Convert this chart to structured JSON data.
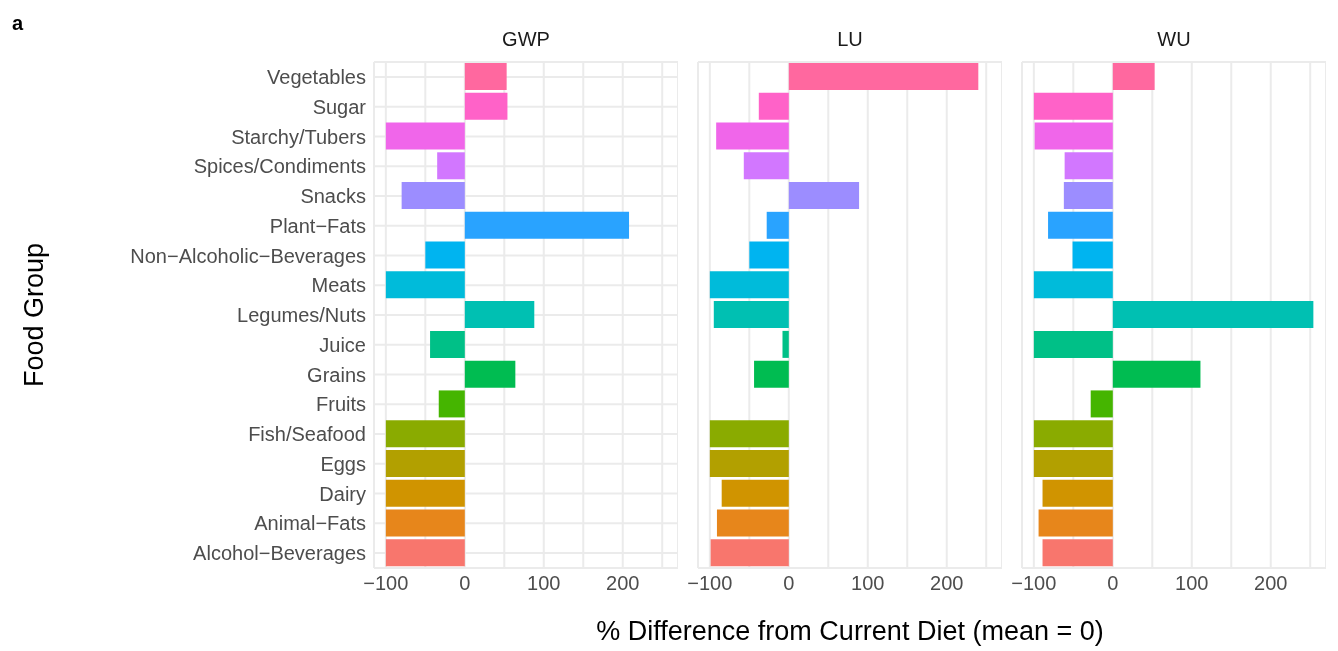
{
  "chart_data": [
    {
      "type": "bar",
      "orientation": "horizontal",
      "title": "GWP",
      "ylabel": "Food Group",
      "annotations": [
        "a"
      ],
      "grid": true,
      "categories": [
        "Vegetables",
        "Sugar",
        "Starchy/Tubers",
        "Spices/Condiments",
        "Snacks",
        "Plant−Fats",
        "Non−Alcoholic−Beverages",
        "Meats",
        "Legumes/Nuts",
        "Juice",
        "Grains",
        "Fruits",
        "Fish/Seafood",
        "Eggs",
        "Dairy",
        "Animal−Fats",
        "Alcohol−Beverages"
      ],
      "values": [
        53,
        54,
        -100,
        -35,
        -80,
        208,
        -50,
        -100,
        88,
        -44,
        64,
        -33,
        -100,
        -100,
        -100,
        -100,
        -100
      ],
      "colors": [
        "#ff689f",
        "#ff62c8",
        "#f066ea",
        "#d277ff",
        "#9c8dff",
        "#29a3ff",
        "#00b4f0",
        "#00bbda",
        "#00c0b2",
        "#00c087",
        "#00bc51",
        "#45b500",
        "#8aab00",
        "#b2a000",
        "#d09400",
        "#e7861b",
        "#f8766d"
      ],
      "xlim": [
        -115,
        270
      ],
      "xticks": [
        -100,
        {
          "value": -50,
          "label": null
        },
        0,
        {
          "value": 50,
          "label": null
        },
        100,
        {
          "value": 150,
          "label": null
        },
        200,
        {
          "value": 250,
          "label": null
        }
      ]
    },
    {
      "type": "bar",
      "orientation": "horizontal",
      "title": "LU",
      "xlabel": "% Difference from Current Diet (mean = 0)",
      "grid": true,
      "tick_labels": "x",
      "categories": [
        "Vegetables",
        "Sugar",
        "Starchy/Tubers",
        "Spices/Condiments",
        "Snacks",
        "Plant−Fats",
        "Non−Alcoholic−Beverages",
        "Meats",
        "Legumes/Nuts",
        "Juice",
        "Grains",
        "Fruits",
        "Fish/Seafood",
        "Eggs",
        "Dairy",
        "Animal−Fats",
        "Alcohol−Beverages"
      ],
      "values": [
        240,
        -38,
        -92,
        -57,
        89,
        -28,
        -50,
        -100,
        -95,
        -8,
        -44,
        0,
        -100,
        -100,
        -85,
        -91,
        -99
      ],
      "colors": [
        "#ff689f",
        "#ff62c8",
        "#f066ea",
        "#d277ff",
        "#9c8dff",
        "#29a3ff",
        "#00b4f0",
        "#00bbda",
        "#00c0b2",
        "#00c087",
        "#00bc51",
        "#45b500",
        "#8aab00",
        "#b2a000",
        "#d09400",
        "#e7861b",
        "#f8766d"
      ],
      "xlim": [
        -115,
        270
      ],
      "xticks": [
        -100,
        {
          "value": -50,
          "label": null
        },
        0,
        {
          "value": 50,
          "label": null
        },
        100,
        {
          "value": 150,
          "label": null
        },
        200,
        {
          "value": 250,
          "label": null
        }
      ]
    },
    {
      "type": "bar",
      "orientation": "horizontal",
      "title": "WU",
      "grid": true,
      "tick_labels": "x",
      "categories": [
        "Vegetables",
        "Sugar",
        "Starchy/Tubers",
        "Spices/Condiments",
        "Snacks",
        "Plant−Fats",
        "Non−Alcoholic−Beverages",
        "Meats",
        "Legumes/Nuts",
        "Juice",
        "Grains",
        "Fruits",
        "Fish/Seafood",
        "Eggs",
        "Dairy",
        "Animal−Fats",
        "Alcohol−Beverages"
      ],
      "values": [
        53,
        -100,
        -99,
        -61,
        -62,
        -82,
        -51,
        -100,
        254,
        -100,
        111,
        -28,
        -100,
        -100,
        -89,
        -94,
        -89
      ],
      "colors": [
        "#ff689f",
        "#ff62c8",
        "#f066ea",
        "#d277ff",
        "#9c8dff",
        "#29a3ff",
        "#00b4f0",
        "#00bbda",
        "#00c0b2",
        "#00c087",
        "#00bc51",
        "#45b500",
        "#8aab00",
        "#b2a000",
        "#d09400",
        "#e7861b",
        "#f8766d"
      ],
      "xlim": [
        -115,
        270
      ],
      "xticks": [
        -100,
        {
          "value": -50,
          "label": null
        },
        0,
        {
          "value": 50,
          "label": null
        },
        100,
        {
          "value": 150,
          "label": null
        },
        200,
        {
          "value": 250,
          "label": null
        }
      ]
    }
  ]
}
